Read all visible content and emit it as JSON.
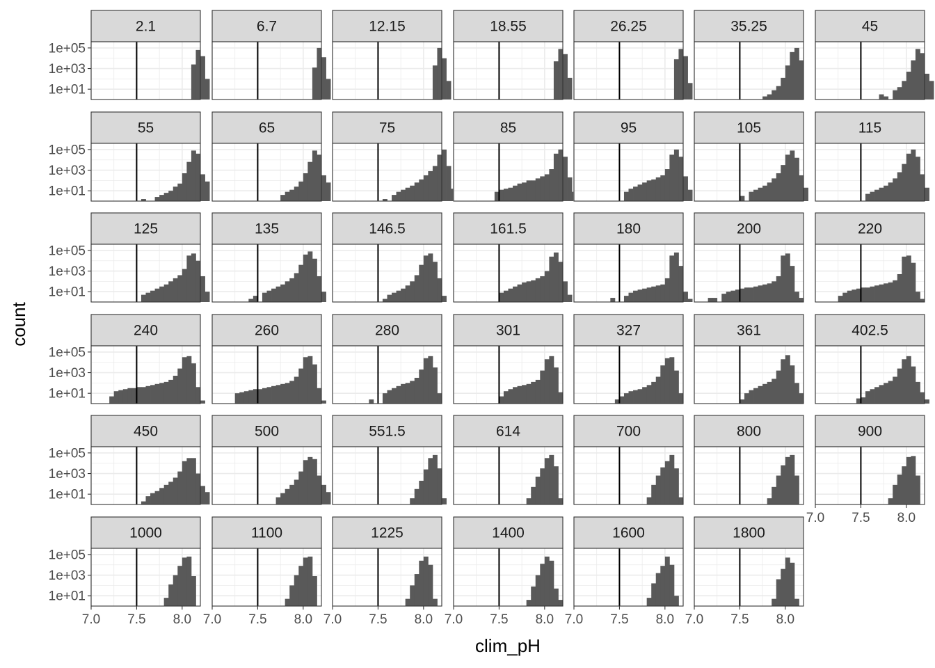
{
  "chart_data": {
    "type": "bar",
    "subtype": "faceted-histogram",
    "xlabel": "clim_pH",
    "ylabel": "count",
    "xlim": [
      7.0,
      8.2
    ],
    "x_tick_labels": [
      "7.0",
      "7.5",
      "8.0"
    ],
    "x_ticks": [
      7.0,
      7.5,
      8.0
    ],
    "y_scale": "log10",
    "ylim_log10": [
      0,
      5.6
    ],
    "y_tick_labels": [
      "1e+01",
      "1e+03",
      "1e+05"
    ],
    "y_ticks_log10": [
      1,
      3,
      5
    ],
    "reference_line_x": 7.5,
    "bin_start": 7.0,
    "bin_width": 0.05,
    "grid": true,
    "bar_color": "#595959",
    "panel_border_color": "#333333",
    "strip_fill": "#d9d9d9",
    "grid_color": "#ebebeb",
    "panels": [
      {
        "label": "2.1",
        "counts_log10": [
          null,
          null,
          null,
          null,
          null,
          null,
          null,
          null,
          null,
          null,
          null,
          null,
          null,
          null,
          null,
          null,
          null,
          null,
          null,
          null,
          null,
          null,
          3.4,
          4.8,
          4.2,
          2.0
        ]
      },
      {
        "label": "6.7",
        "counts_log10": [
          null,
          null,
          null,
          null,
          null,
          null,
          null,
          null,
          null,
          null,
          null,
          null,
          null,
          null,
          null,
          null,
          null,
          null,
          null,
          null,
          null,
          null,
          3.1,
          5.0,
          4.1,
          2.0
        ]
      },
      {
        "label": "12.15",
        "counts_log10": [
          null,
          null,
          null,
          null,
          null,
          null,
          null,
          null,
          null,
          null,
          null,
          null,
          null,
          null,
          null,
          null,
          null,
          null,
          null,
          null,
          null,
          null,
          3.3,
          5.0,
          4.0,
          1.8
        ]
      },
      {
        "label": "18.55",
        "counts_log10": [
          null,
          null,
          null,
          null,
          null,
          null,
          null,
          null,
          null,
          null,
          null,
          null,
          null,
          null,
          null,
          null,
          null,
          null,
          null,
          null,
          null,
          null,
          3.7,
          4.9,
          4.4,
          2.1
        ]
      },
      {
        "label": "26.25",
        "counts_log10": [
          null,
          null,
          null,
          null,
          null,
          null,
          null,
          null,
          null,
          null,
          null,
          null,
          null,
          null,
          null,
          null,
          null,
          null,
          null,
          null,
          null,
          null,
          3.9,
          4.9,
          4.2,
          1.6
        ]
      },
      {
        "label": "35.25",
        "counts_log10": [
          null,
          null,
          null,
          null,
          null,
          null,
          null,
          null,
          null,
          null,
          null,
          null,
          null,
          null,
          null,
          0.3,
          0.5,
          0.9,
          1.3,
          2.1,
          3.3,
          4.6,
          5.0,
          3.8
        ]
      },
      {
        "label": "45",
        "counts_log10": [
          null,
          null,
          null,
          null,
          null,
          null,
          null,
          null,
          null,
          null,
          null,
          null,
          null,
          null,
          0.5,
          0.3,
          null,
          0.9,
          1.2,
          1.8,
          2.7,
          3.8,
          4.9,
          4.5,
          2.5,
          1.8
        ]
      },
      {
        "label": "55",
        "counts_log10": [
          null,
          null,
          null,
          null,
          null,
          null,
          null,
          null,
          null,
          null,
          null,
          0.2,
          null,
          null,
          0.4,
          0.6,
          0.8,
          1.0,
          1.4,
          1.7,
          2.7,
          3.8,
          4.9,
          4.6,
          2.6,
          1.9
        ]
      },
      {
        "label": "65",
        "counts_log10": [
          null,
          null,
          null,
          null,
          null,
          null,
          null,
          null,
          null,
          null,
          null,
          null,
          null,
          null,
          null,
          0.6,
          0.9,
          1.1,
          1.4,
          1.9,
          2.7,
          3.8,
          4.9,
          4.5,
          2.5,
          1.8
        ]
      },
      {
        "label": "75",
        "counts_log10": [
          null,
          null,
          null,
          null,
          null,
          null,
          null,
          null,
          null,
          null,
          null,
          0.2,
          null,
          0.6,
          0.9,
          1.1,
          1.3,
          1.5,
          1.8,
          2.1,
          2.5,
          2.9,
          3.4,
          4.5,
          5.0,
          3.4,
          1.2
        ]
      },
      {
        "label": "85",
        "counts_log10": [
          null,
          null,
          null,
          null,
          null,
          null,
          null,
          null,
          null,
          0.9,
          1.1,
          1.2,
          1.3,
          1.5,
          1.7,
          1.8,
          2.0,
          2.0,
          2.2,
          2.4,
          2.6,
          3.1,
          4.6,
          5.0,
          4.3,
          2.3,
          0.9
        ]
      },
      {
        "label": "95",
        "counts_log10": [
          null,
          null,
          null,
          null,
          null,
          null,
          null,
          null,
          null,
          null,
          null,
          0.9,
          1.2,
          1.4,
          1.6,
          1.8,
          2.0,
          2.1,
          2.3,
          2.5,
          3.1,
          4.5,
          5.0,
          4.3,
          2.4,
          1.1
        ]
      },
      {
        "label": "105",
        "counts_log10": [
          null,
          null,
          null,
          null,
          null,
          null,
          null,
          null,
          null,
          null,
          0.5,
          null,
          0.9,
          1.1,
          1.3,
          1.5,
          1.8,
          2.2,
          2.7,
          3.5,
          4.5,
          4.9,
          4.2,
          2.5,
          1.3
        ]
      },
      {
        "label": "115",
        "counts_log10": [
          null,
          null,
          null,
          null,
          null,
          null,
          null,
          null,
          null,
          null,
          null,
          0.7,
          0.9,
          1.1,
          1.3,
          1.5,
          1.8,
          2.2,
          2.8,
          3.6,
          4.6,
          5.0,
          4.3,
          2.6,
          1.3
        ]
      },
      {
        "label": "125",
        "counts_log10": [
          null,
          null,
          null,
          null,
          null,
          null,
          null,
          null,
          null,
          null,
          null,
          0.7,
          0.9,
          1.1,
          1.3,
          1.5,
          1.7,
          2.0,
          2.3,
          2.6,
          3.2,
          4.5,
          4.7,
          4.0,
          2.5,
          1.0
        ]
      },
      {
        "label": "135",
        "counts_log10": [
          null,
          null,
          null,
          null,
          null,
          null,
          null,
          null,
          0.3,
          0.6,
          null,
          0.9,
          1.1,
          1.3,
          1.5,
          1.7,
          2.0,
          2.3,
          2.8,
          3.6,
          4.6,
          4.9,
          4.2,
          2.5,
          1.0
        ]
      },
      {
        "label": "146.5",
        "counts_log10": [
          null,
          null,
          null,
          null,
          null,
          null,
          null,
          null,
          null,
          null,
          null,
          0.3,
          0.7,
          0.9,
          1.1,
          1.3,
          1.6,
          2.0,
          2.6,
          3.6,
          4.5,
          4.7,
          3.9,
          2.3,
          0.6
        ]
      },
      {
        "label": "161.5",
        "counts_log10": [
          null,
          null,
          null,
          null,
          null,
          null,
          null,
          null,
          null,
          null,
          0.9,
          1.1,
          1.3,
          1.5,
          1.7,
          1.9,
          2.0,
          2.1,
          2.3,
          2.5,
          3.0,
          4.4,
          4.8,
          3.9,
          2.0,
          0.7
        ]
      },
      {
        "label": "180",
        "counts_log10": [
          null,
          null,
          null,
          null,
          null,
          null,
          null,
          null,
          0.4,
          null,
          null,
          0.6,
          0.9,
          1.1,
          1.2,
          1.3,
          1.4,
          1.5,
          1.6,
          1.7,
          2.3,
          4.5,
          4.8,
          3.5,
          1.0,
          0.3
        ]
      },
      {
        "label": "200",
        "counts_log10": [
          null,
          null,
          null,
          0.4,
          0.4,
          null,
          0.8,
          1.0,
          1.1,
          1.2,
          1.3,
          1.4,
          1.4,
          1.5,
          1.6,
          1.7,
          1.8,
          2.0,
          2.5,
          4.5,
          4.7,
          3.5,
          1.0,
          0.4
        ]
      },
      {
        "label": "220",
        "counts_log10": [
          null,
          null,
          null,
          null,
          null,
          0.6,
          0.9,
          1.1,
          1.2,
          1.3,
          1.4,
          1.4,
          1.5,
          1.6,
          1.7,
          1.8,
          1.9,
          2.1,
          2.7,
          4.4,
          4.5,
          3.8,
          1.0,
          0.3
        ]
      },
      {
        "label": "240",
        "counts_log10": [
          null,
          null,
          null,
          null,
          0.7,
          1.2,
          1.3,
          1.4,
          1.5,
          1.5,
          1.6,
          1.6,
          1.7,
          1.8,
          1.9,
          2.0,
          2.1,
          2.3,
          2.7,
          3.4,
          4.5,
          4.6,
          3.9,
          1.6,
          0.3
        ]
      },
      {
        "label": "260",
        "counts_log10": [
          null,
          null,
          null,
          null,
          null,
          1.0,
          1.1,
          1.2,
          1.3,
          1.4,
          1.4,
          1.5,
          1.6,
          1.7,
          1.8,
          1.9,
          2.0,
          2.2,
          2.6,
          3.4,
          4.5,
          4.6,
          3.8,
          1.5,
          0.3
        ]
      },
      {
        "label": "280",
        "counts_log10": [
          null,
          null,
          null,
          null,
          null,
          null,
          null,
          null,
          0.4,
          null,
          null,
          1.0,
          1.3,
          1.5,
          1.7,
          1.9,
          2.0,
          2.2,
          2.5,
          3.3,
          4.4,
          4.6,
          3.5,
          1.0
        ]
      },
      {
        "label": "301",
        "counts_log10": [
          null,
          null,
          null,
          null,
          null,
          null,
          null,
          null,
          null,
          null,
          0.7,
          1.2,
          1.4,
          1.6,
          1.7,
          1.8,
          1.9,
          2.1,
          2.3,
          3.2,
          4.3,
          4.6,
          3.5,
          1.1
        ]
      },
      {
        "label": "327",
        "counts_log10": [
          null,
          null,
          null,
          null,
          null,
          null,
          null,
          null,
          null,
          0.4,
          0.7,
          1.0,
          1.2,
          1.3,
          1.4,
          1.6,
          1.8,
          2.1,
          2.6,
          3.7,
          4.4,
          4.5,
          3.2,
          1.0
        ]
      },
      {
        "label": "361",
        "counts_log10": [
          null,
          null,
          null,
          null,
          null,
          null,
          null,
          null,
          null,
          null,
          0.4,
          1.0,
          1.3,
          1.5,
          1.7,
          1.9,
          2.1,
          2.4,
          3.2,
          4.3,
          4.7,
          3.7,
          2.0,
          1.0
        ]
      },
      {
        "label": "402.5",
        "counts_log10": [
          null,
          null,
          null,
          null,
          null,
          null,
          null,
          null,
          null,
          0.5,
          0.6,
          1.2,
          1.4,
          1.6,
          1.8,
          2.0,
          2.2,
          2.6,
          3.4,
          4.3,
          4.6,
          3.6,
          2.1,
          1.1,
          0.4
        ]
      },
      {
        "label": "450",
        "counts_log10": [
          null,
          null,
          null,
          null,
          null,
          null,
          null,
          null,
          null,
          null,
          null,
          0.3,
          0.8,
          1.1,
          1.3,
          1.6,
          1.9,
          2.2,
          2.6,
          3.2,
          4.2,
          4.5,
          4.5,
          3.0,
          1.8,
          1.2
        ]
      },
      {
        "label": "500",
        "counts_log10": [
          null,
          null,
          null,
          null,
          null,
          null,
          null,
          null,
          null,
          null,
          null,
          null,
          null,
          null,
          0.7,
          1.1,
          1.5,
          1.9,
          2.4,
          3.2,
          4.3,
          4.6,
          4.4,
          2.8,
          1.9,
          1.2
        ]
      },
      {
        "label": "551.5",
        "counts_log10": [
          null,
          null,
          null,
          null,
          null,
          null,
          null,
          null,
          null,
          null,
          null,
          null,
          null,
          null,
          null,
          null,
          null,
          0.6,
          1.5,
          2.3,
          3.4,
          4.5,
          4.8,
          3.5,
          0.6
        ]
      },
      {
        "label": "614",
        "counts_log10": [
          null,
          null,
          null,
          null,
          null,
          null,
          null,
          null,
          null,
          null,
          null,
          null,
          null,
          null,
          null,
          null,
          0.6,
          1.7,
          2.7,
          3.5,
          4.5,
          4.8,
          3.7,
          0.6
        ]
      },
      {
        "label": "700",
        "counts_log10": [
          null,
          null,
          null,
          null,
          null,
          null,
          null,
          null,
          null,
          null,
          null,
          null,
          null,
          null,
          null,
          null,
          0.7,
          1.9,
          2.8,
          3.6,
          4.2,
          4.8,
          3.5,
          0.7
        ]
      },
      {
        "label": "800",
        "counts_log10": [
          null,
          null,
          null,
          null,
          null,
          null,
          null,
          null,
          null,
          null,
          null,
          null,
          null,
          null,
          null,
          null,
          0.6,
          1.7,
          2.8,
          3.8,
          4.6,
          4.8,
          2.8
        ]
      },
      {
        "label": "900",
        "counts_log10": [
          null,
          null,
          null,
          null,
          null,
          null,
          null,
          null,
          null,
          null,
          null,
          null,
          null,
          null,
          null,
          null,
          0.6,
          1.9,
          2.9,
          3.7,
          4.6,
          4.7,
          2.8
        ]
      },
      {
        "label": "1000",
        "counts_log10": [
          null,
          null,
          null,
          null,
          null,
          null,
          null,
          null,
          null,
          null,
          null,
          null,
          null,
          null,
          null,
          null,
          0.8,
          2.1,
          3.0,
          3.9,
          4.7,
          4.8,
          2.9
        ]
      },
      {
        "label": "1100",
        "counts_log10": [
          null,
          null,
          null,
          null,
          null,
          null,
          null,
          null,
          null,
          null,
          null,
          null,
          null,
          null,
          null,
          null,
          0.7,
          2.0,
          3.0,
          3.9,
          4.7,
          4.8,
          2.9
        ]
      },
      {
        "label": "1225",
        "counts_log10": [
          null,
          null,
          null,
          null,
          null,
          null,
          null,
          null,
          null,
          null,
          null,
          null,
          null,
          null,
          null,
          null,
          0.7,
          2.0,
          3.1,
          4.4,
          4.8,
          4.0,
          0.7
        ]
      },
      {
        "label": "1400",
        "counts_log10": [
          null,
          null,
          null,
          null,
          null,
          null,
          null,
          null,
          null,
          null,
          null,
          null,
          null,
          null,
          null,
          null,
          0.6,
          1.9,
          3.0,
          4.1,
          4.8,
          4.4,
          1.7,
          0.6
        ]
      },
      {
        "label": "1600",
        "counts_log10": [
          null,
          null,
          null,
          null,
          null,
          null,
          null,
          null,
          null,
          null,
          null,
          null,
          null,
          null,
          null,
          null,
          0.8,
          2.2,
          3.2,
          3.9,
          4.8,
          4.0,
          1.0
        ]
      },
      {
        "label": "1800",
        "counts_log10": [
          null,
          null,
          null,
          null,
          null,
          null,
          null,
          null,
          null,
          null,
          null,
          null,
          null,
          null,
          null,
          null,
          null,
          0.7,
          2.6,
          3.6,
          4.7,
          4.2,
          0.7
        ]
      }
    ]
  }
}
